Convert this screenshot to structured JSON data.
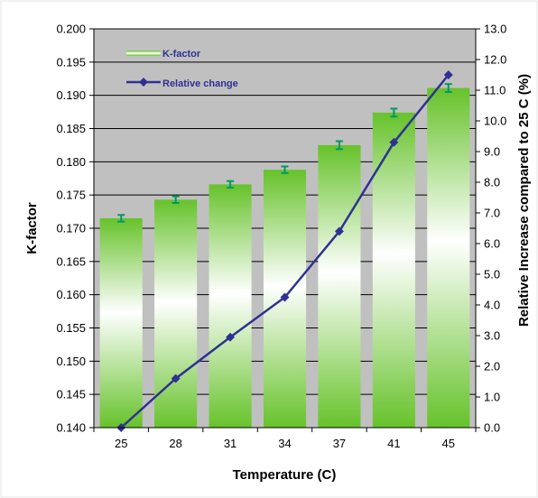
{
  "chart_data": {
    "type": "bar",
    "categories": [
      "25",
      "28",
      "31",
      "34",
      "37",
      "41",
      "45"
    ],
    "xlabel": "Temperature (C)",
    "ylabel": "K-factor",
    "y2label": "Relative Increase compared to 25 C (%)",
    "ylim": [
      0.14,
      0.2
    ],
    "y2lim": [
      0.0,
      13.0
    ],
    "yticks": [
      "0.140",
      "0.145",
      "0.150",
      "0.155",
      "0.160",
      "0.165",
      "0.170",
      "0.175",
      "0.180",
      "0.185",
      "0.190",
      "0.195",
      "0.200"
    ],
    "y2ticks": [
      "0.0",
      "1.0",
      "2.0",
      "3.0",
      "4.0",
      "5.0",
      "6.0",
      "7.0",
      "8.0",
      "9.0",
      "10.0",
      "11.0",
      "12.0",
      "13.0"
    ],
    "grid": true,
    "legend_position": "top-left",
    "series": [
      {
        "name": "K-factor",
        "type": "bar",
        "axis": "left",
        "values": [
          0.1715,
          0.1743,
          0.1766,
          0.1788,
          0.1825,
          0.1874,
          0.1911
        ],
        "error": [
          0.0005,
          0.0005,
          0.0005,
          0.0005,
          0.0006,
          0.0006,
          0.0006
        ],
        "color": "#66c22a"
      },
      {
        "name": "Relative change",
        "type": "line",
        "axis": "right",
        "values": [
          0.0,
          1.6,
          2.95,
          4.25,
          6.4,
          9.3,
          11.5
        ],
        "color": "#2e3192"
      }
    ],
    "colors": {
      "plot_background": "#c0c0c0",
      "error_bar": "#009966",
      "legend_text": "#2e3192"
    }
  }
}
